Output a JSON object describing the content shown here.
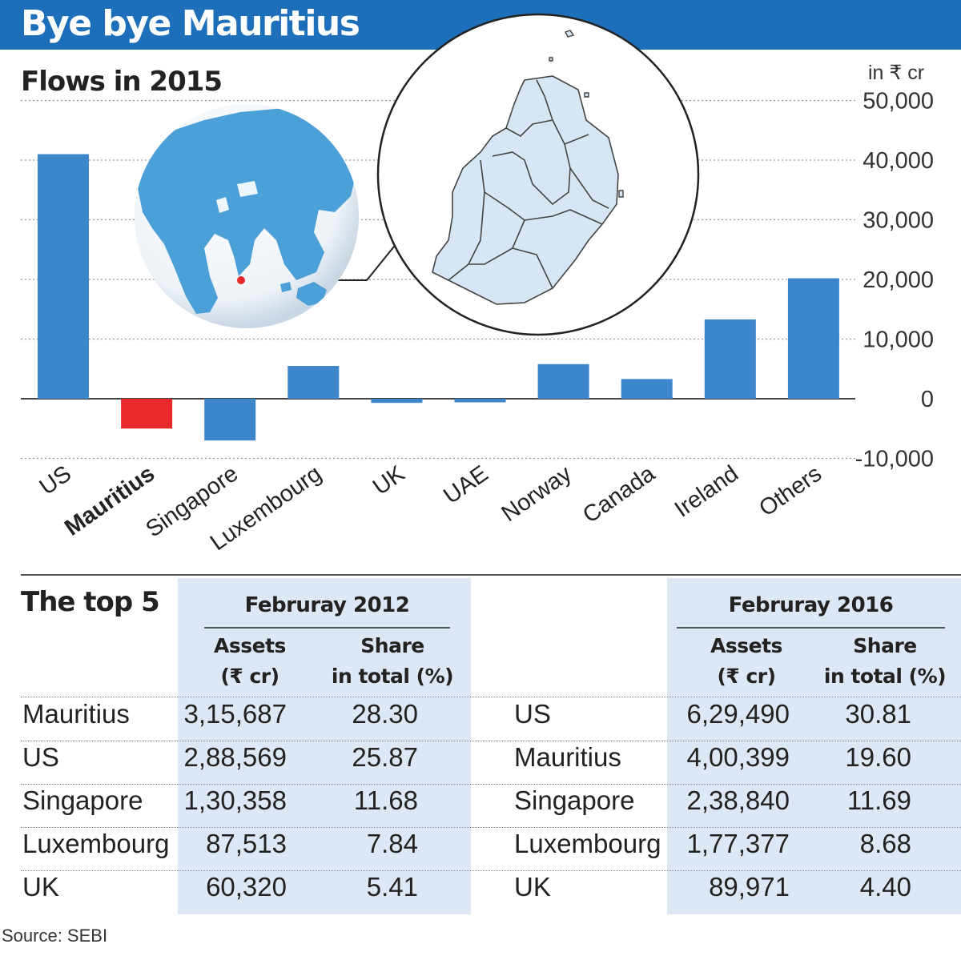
{
  "header": {
    "title": "Bye bye Mauritius"
  },
  "chart_data": {
    "type": "bar",
    "title": "Flows in 2015",
    "unit": "in ₹ cr",
    "categories": [
      "US",
      "Mauritius",
      "Singapore",
      "Luxembourg",
      "UK",
      "UAE",
      "Norway",
      "Canada",
      "Ireland",
      "Others"
    ],
    "values": [
      41000,
      -5000,
      -7000,
      5500,
      -700,
      -600,
      5800,
      3300,
      13300,
      20200
    ],
    "highlight_category": "Mauritius",
    "colors": {
      "default": "#3d86cc",
      "highlight": "#e8292b"
    },
    "ylim": [
      -10000,
      50000
    ],
    "yticks": [
      50000,
      40000,
      30000,
      20000,
      10000,
      0,
      -10000
    ],
    "ytick_labels": [
      "50,000",
      "40,000",
      "30,000",
      "20,000",
      "10,000",
      "0",
      "-10,000"
    ],
    "grid": true,
    "axis_side": "right"
  },
  "inset": {
    "globe_marker": "Mauritius location",
    "globe_color": "#4ba0d8",
    "map_color": "#d6e6f5"
  },
  "table": {
    "title": "The top 5",
    "periods": [
      {
        "label": "Februray 2012",
        "col_assets": [
          "Assets",
          "(₹ cr)"
        ],
        "col_share": [
          "Share",
          "in total (%)"
        ],
        "rows": [
          {
            "country": "Mauritius",
            "assets": "3,15,687",
            "share": "28.30"
          },
          {
            "country": "US",
            "assets": "2,88,569",
            "share": "25.87"
          },
          {
            "country": "Singapore",
            "assets": "1,30,358",
            "share": "11.68"
          },
          {
            "country": "Luxembourg",
            "assets": "87,513",
            "share": "7.84"
          },
          {
            "country": "UK",
            "assets": "60,320",
            "share": "5.41"
          }
        ]
      },
      {
        "label": "Februray 2016",
        "col_assets": [
          "Assets",
          "(₹ cr)"
        ],
        "col_share": [
          "Share",
          "in total (%)"
        ],
        "rows": [
          {
            "country": "US",
            "assets": "6,29,490",
            "share": "30.81"
          },
          {
            "country": "Mauritius",
            "assets": "4,00,399",
            "share": "19.60"
          },
          {
            "country": "Singapore",
            "assets": "2,38,840",
            "share": "11.69"
          },
          {
            "country": "Luxembourg",
            "assets": "1,77,377",
            "share": "8.68"
          },
          {
            "country": "UK",
            "assets": "89,971",
            "share": "4.40"
          }
        ]
      }
    ]
  },
  "source": "Source: SEBI"
}
